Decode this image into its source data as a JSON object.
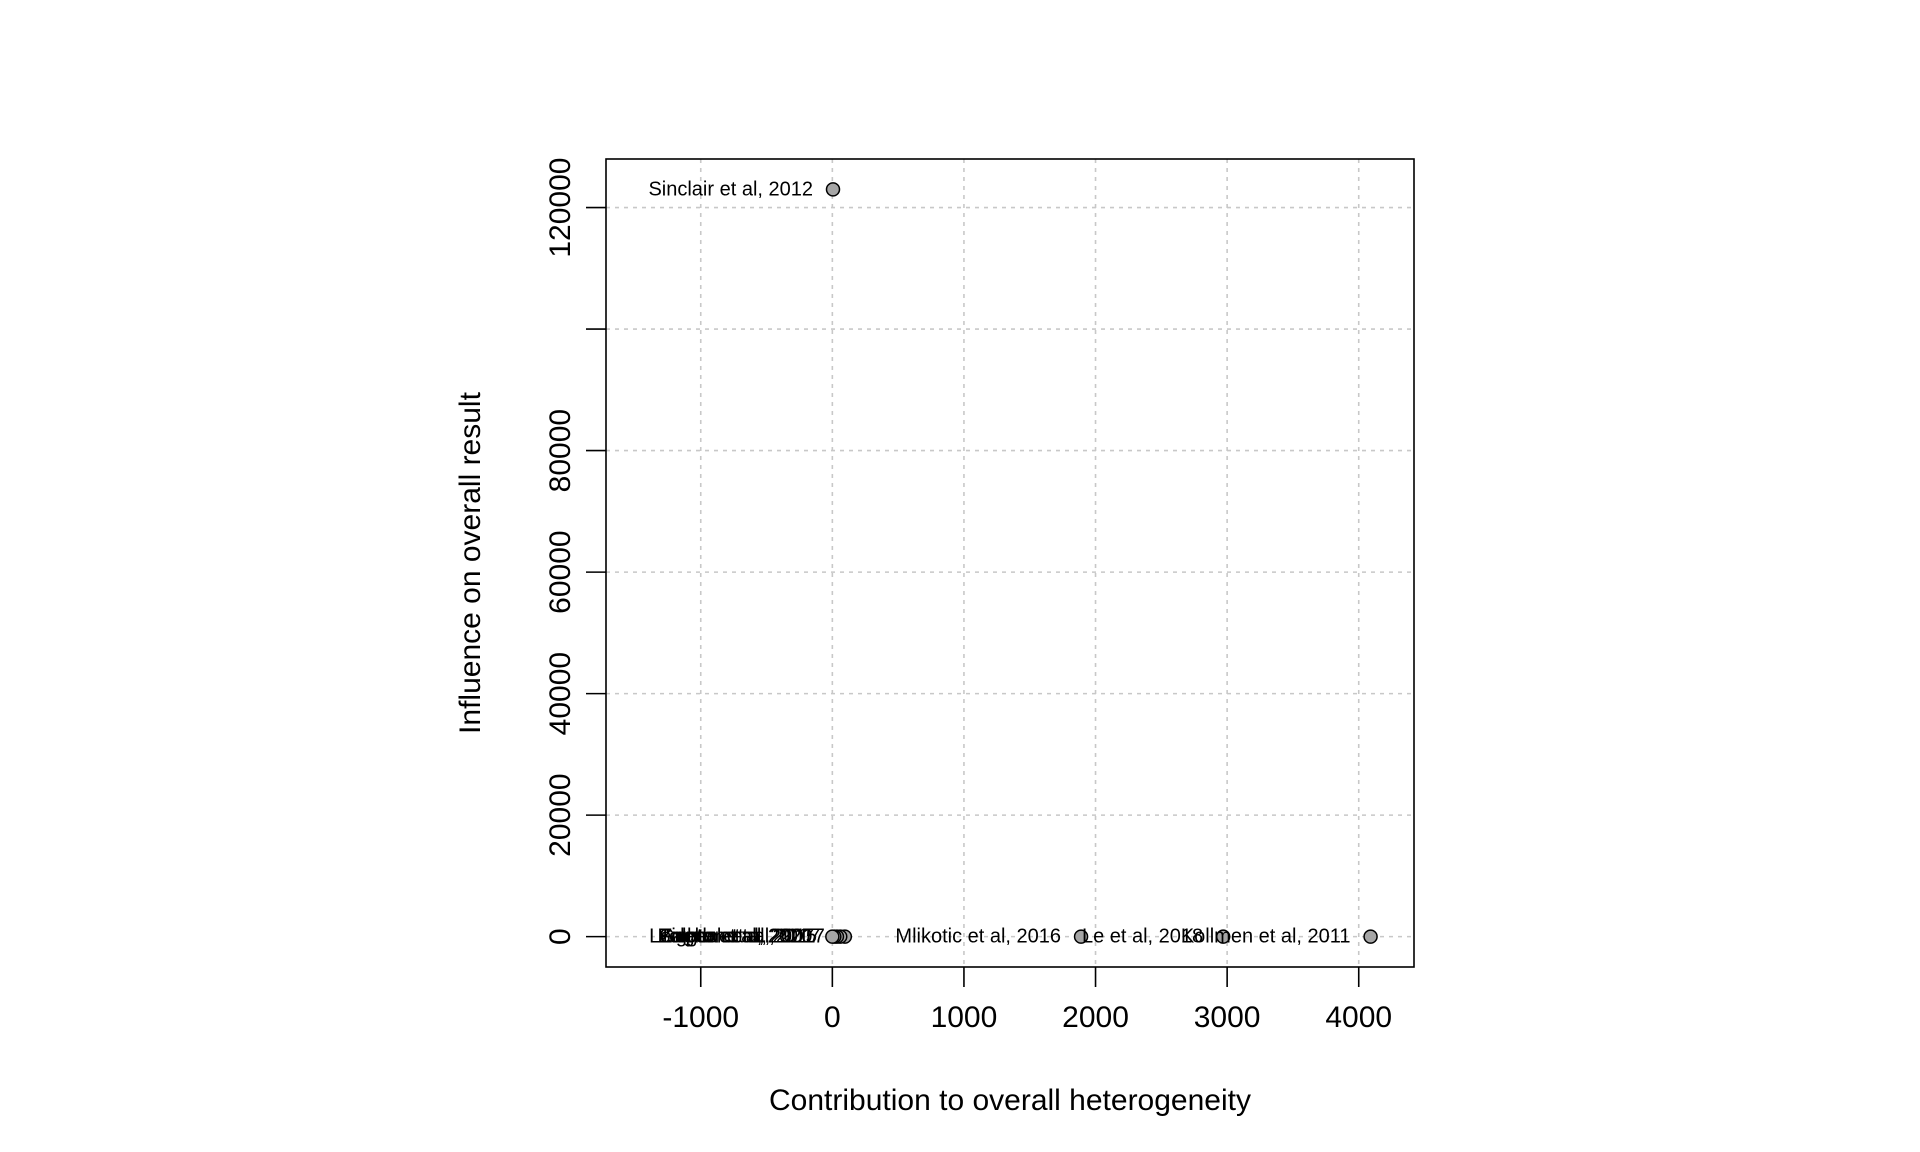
{
  "chart_data": {
    "type": "scatter",
    "title": "",
    "xlabel": "Contribution to overall heterogeneity",
    "ylabel": "Influence on overall result",
    "xlim": [
      -1720,
      4420
    ],
    "ylim": [
      -5000,
      128000
    ],
    "x_ticks": [
      -1000,
      0,
      1000,
      2000,
      3000,
      4000
    ],
    "x_tick_labels": [
      "-1000",
      "0",
      "1000",
      "2000",
      "3000",
      "4000"
    ],
    "y_ticks": [
      0,
      20000,
      40000,
      60000,
      80000,
      100000,
      120000
    ],
    "y_tick_labels": [
      "0",
      "20000",
      "40000",
      "60000",
      "80000",
      "",
      "120000"
    ],
    "grid": true,
    "legend": "none",
    "point_color": "#a6a6a6",
    "points": [
      {
        "label": "Sinclair et al, 2012",
        "x": 5,
        "y": 123000
      },
      {
        "label": "Kollmen et al, 2011",
        "x": 4090,
        "y": 0
      },
      {
        "label": "Le et al, 2018",
        "x": 2970,
        "y": 0
      },
      {
        "label": "Mlikotic et al, 2016",
        "x": 1890,
        "y": 0
      },
      {
        "label": "Leighton et al, 2017",
        "x": 95,
        "y": 0
      },
      {
        "label": "Zaghal et al, 2017",
        "x": 60,
        "y": 0
      },
      {
        "label": "Toledo et al, 2015",
        "x": 35,
        "y": 0
      },
      {
        "label": "Bulger et al, 2007",
        "x": 15,
        "y": 0
      },
      {
        "label": "Gupta et al, 2020",
        "x": 0,
        "y": 0
      }
    ]
  }
}
